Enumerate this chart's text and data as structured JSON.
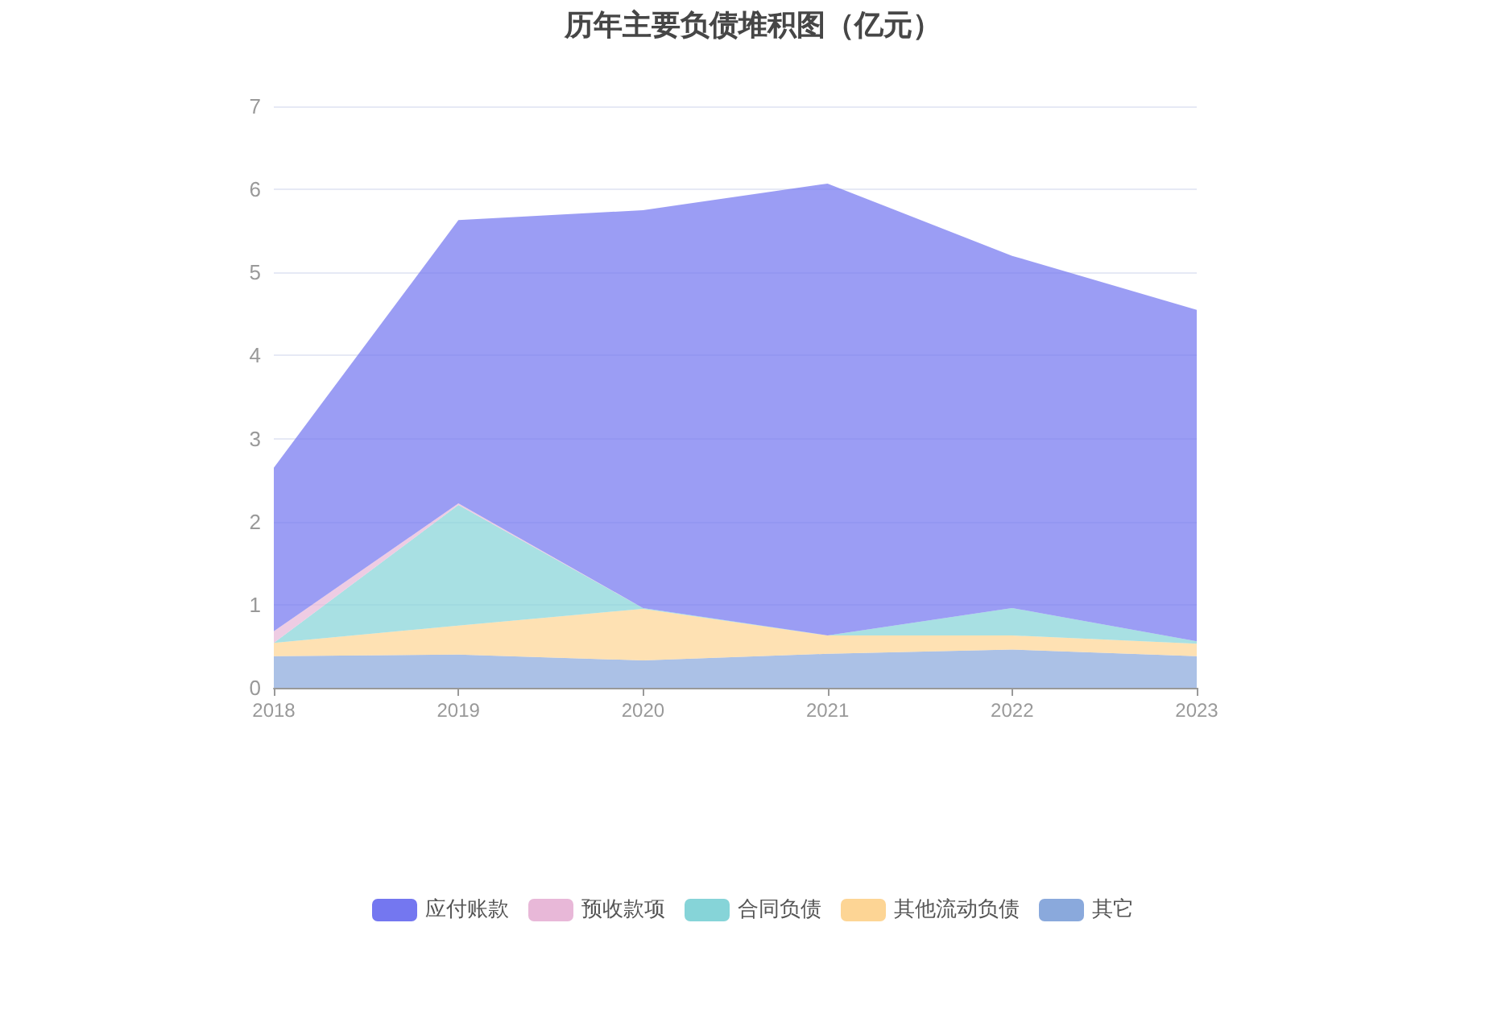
{
  "chart_data": {
    "type": "area",
    "title": "历年主要负债堆积图（亿元）",
    "categories": [
      "2018",
      "2019",
      "2020",
      "2021",
      "2022",
      "2023"
    ],
    "stacked": true,
    "series": [
      {
        "name": "其它",
        "color": "#8aa9dc",
        "values": [
          0.38,
          0.4,
          0.33,
          0.41,
          0.46,
          0.38
        ]
      },
      {
        "name": "其他流动负债",
        "color": "#fdd595",
        "values": [
          0.16,
          0.35,
          0.62,
          0.22,
          0.17,
          0.15
        ]
      },
      {
        "name": "合同负债",
        "color": "#86d4d8",
        "values": [
          0,
          1.45,
          0.01,
          0,
          0.33,
          0.03
        ]
      },
      {
        "name": "预收款项",
        "color": "#e8b8d8",
        "values": [
          0.14,
          0.02,
          0,
          0,
          0,
          0
        ]
      },
      {
        "name": "应付账款",
        "color": "#7477f0",
        "values": [
          1.97,
          3.41,
          4.79,
          5.44,
          4.24,
          3.99
        ]
      }
    ],
    "ylim": [
      0,
      7
    ],
    "yticks": [
      0,
      1,
      2,
      3,
      4,
      5,
      6,
      7
    ],
    "grid": "y",
    "legend": "bottom",
    "marker": "none"
  }
}
